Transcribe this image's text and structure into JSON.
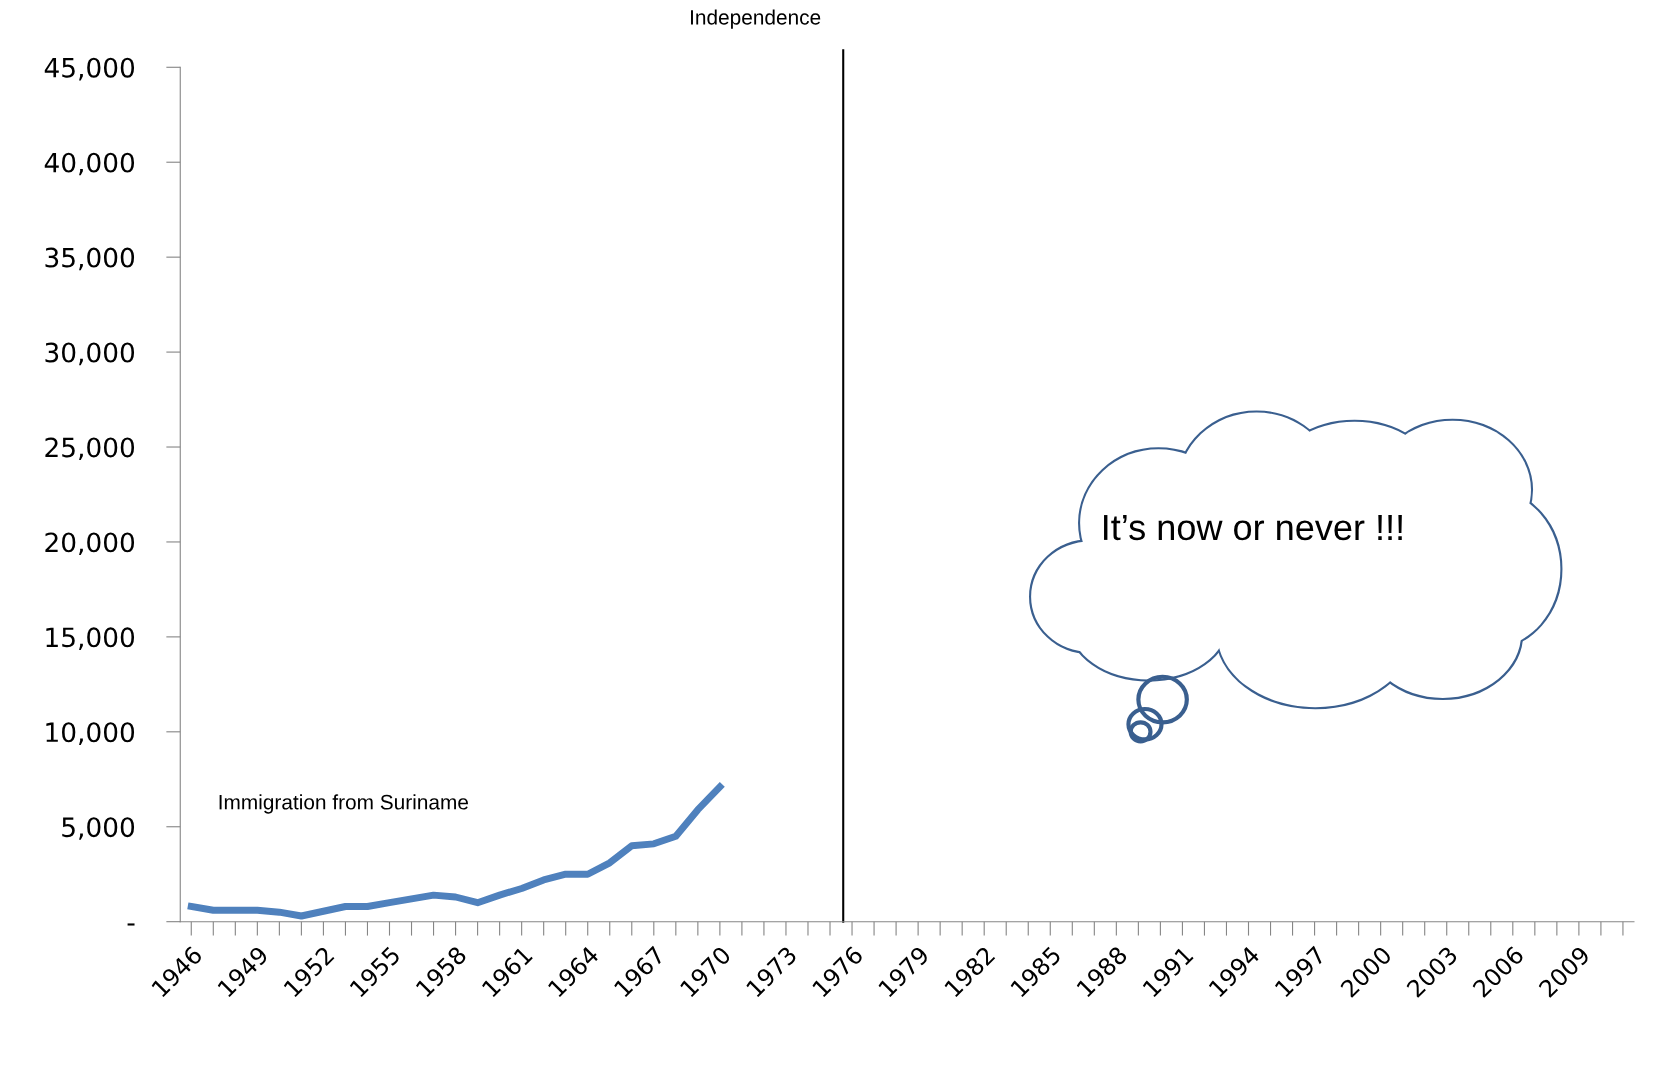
{
  "chart_data": {
    "type": "line",
    "x": [
      1946,
      1947,
      1948,
      1949,
      1950,
      1951,
      1952,
      1953,
      1954,
      1955,
      1956,
      1957,
      1958,
      1959,
      1960,
      1961,
      1962,
      1963,
      1964,
      1965,
      1966,
      1967,
      1968,
      1969,
      1970
    ],
    "series": [
      {
        "color": "#4f81bd",
        "values": [
          800,
          600,
          600,
          600,
          500,
          300,
          550,
          800,
          800,
          1000,
          1200,
          1400,
          1300,
          1000,
          1400,
          1750,
          2200,
          2500,
          2500,
          3100,
          4000,
          4100,
          4500,
          5900,
          7100
        ]
      }
    ],
    "xlim": [
      1945.5,
      2011.5
    ],
    "xticks": [
      1946,
      {
        "value": 1947,
        "label": null
      },
      {
        "value": 1948,
        "label": null
      },
      1949,
      {
        "value": 1950,
        "label": null
      },
      {
        "value": 1951,
        "label": null
      },
      1952,
      {
        "value": 1953,
        "label": null
      },
      {
        "value": 1954,
        "label": null
      },
      1955,
      {
        "value": 1956,
        "label": null
      },
      {
        "value": 1957,
        "label": null
      },
      1958,
      {
        "value": 1959,
        "label": null
      },
      {
        "value": 1960,
        "label": null
      },
      1961,
      {
        "value": 1962,
        "label": null
      },
      {
        "value": 1963,
        "label": null
      },
      1964,
      {
        "value": 1965,
        "label": null
      },
      {
        "value": 1966,
        "label": null
      },
      1967,
      {
        "value": 1968,
        "label": null
      },
      {
        "value": 1969,
        "label": null
      },
      1970,
      {
        "value": 1971,
        "label": null
      },
      {
        "value": 1972,
        "label": null
      },
      1973,
      {
        "value": 1974,
        "label": null
      },
      {
        "value": 1975,
        "label": null
      },
      1976,
      {
        "value": 1977,
        "label": null
      },
      {
        "value": 1978,
        "label": null
      },
      1979,
      {
        "value": 1980,
        "label": null
      },
      {
        "value": 1981,
        "label": null
      },
      1982,
      {
        "value": 1983,
        "label": null
      },
      {
        "value": 1984,
        "label": null
      },
      1985,
      {
        "value": 1986,
        "label": null
      },
      {
        "value": 1987,
        "label": null
      },
      1988,
      {
        "value": 1989,
        "label": null
      },
      {
        "value": 1990,
        "label": null
      },
      1991,
      {
        "value": 1992,
        "label": null
      },
      {
        "value": 1993,
        "label": null
      },
      1994,
      {
        "value": 1995,
        "label": null
      },
      {
        "value": 1996,
        "label": null
      },
      1997,
      {
        "value": 1998,
        "label": null
      },
      {
        "value": 1999,
        "label": null
      },
      2000,
      {
        "value": 2001,
        "label": null
      },
      {
        "value": 2002,
        "label": null
      },
      2003,
      {
        "value": 2004,
        "label": null
      },
      {
        "value": 2005,
        "label": null
      },
      2006,
      {
        "value": 2007,
        "label": null
      },
      {
        "value": 2008,
        "label": null
      },
      2009,
      {
        "value": 2010,
        "label": null
      },
      {
        "value": 2011,
        "label": null
      }
    ],
    "ylim": [
      0,
      45000
    ],
    "yticks": [
      {
        "value": 0,
        "label": "-"
      },
      {
        "value": 5000,
        "label": "5,000"
      },
      {
        "value": 10000,
        "label": "10,000"
      },
      {
        "value": 15000,
        "label": "15,000"
      },
      {
        "value": 20000,
        "label": "20,000"
      },
      {
        "value": 25000,
        "label": "25,000"
      },
      {
        "value": 30000,
        "label": "30,000"
      },
      {
        "value": 35000,
        "label": "35,000"
      },
      {
        "value": 40000,
        "label": "40,000"
      },
      {
        "value": 45000,
        "label": "45,000"
      }
    ],
    "ref_lines": [
      {
        "axis": "x",
        "value": 1975.6,
        "label": "Independence",
        "color": "#000000"
      }
    ],
    "annotations": [
      "It’s now or never !!!",
      "Immigration from Suriname"
    ],
    "grid": false,
    "legend": false,
    "marker": "none",
    "line_style": "solid"
  }
}
